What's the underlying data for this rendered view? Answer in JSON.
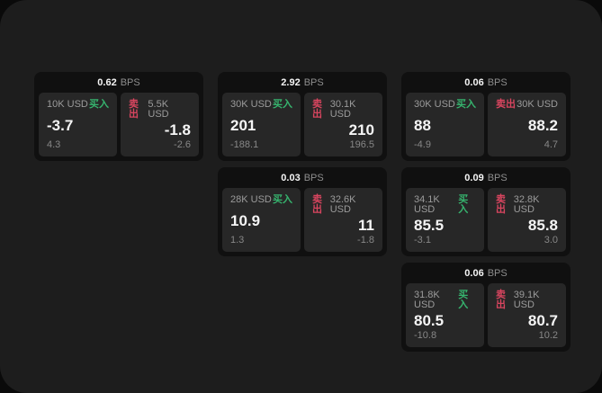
{
  "labels": {
    "buy": "买入",
    "sell": "卖出",
    "bps_unit": "BPS"
  },
  "colors": {
    "buy_accent": "#36b46e",
    "sell_accent": "#d8455f",
    "panel_background": "#1d1d1d",
    "card_background": "#101010",
    "tile_background": "#272727"
  },
  "cards": [
    {
      "bps": "0.62",
      "buy": {
        "amount": "10K USD",
        "price": "-3.7",
        "change": "4.3"
      },
      "sell": {
        "amount": "5.5K USD",
        "price": "-1.8",
        "change": "-2.6"
      }
    },
    {
      "bps": "2.92",
      "buy": {
        "amount": "30K USD",
        "price": "201",
        "change": "-188.1"
      },
      "sell": {
        "amount": "30.1K USD",
        "price": "210",
        "change": "196.5"
      }
    },
    {
      "bps": "0.06",
      "buy": {
        "amount": "30K USD",
        "price": "88",
        "change": "-4.9"
      },
      "sell": {
        "amount": "30K USD",
        "price": "88.2",
        "change": "4.7"
      }
    },
    {
      "bps": "0.03",
      "buy": {
        "amount": "28K USD",
        "price": "10.9",
        "change": "1.3"
      },
      "sell": {
        "amount": "32.6K USD",
        "price": "11",
        "change": "-1.8"
      }
    },
    {
      "bps": "0.09",
      "buy": {
        "amount": "34.1K USD",
        "price": "85.5",
        "change": "-3.1"
      },
      "sell": {
        "amount": "32.8K USD",
        "price": "85.8",
        "change": "3.0"
      }
    },
    {
      "bps": "0.06",
      "buy": {
        "amount": "31.8K USD",
        "price": "80.5",
        "change": "-10.8"
      },
      "sell": {
        "amount": "39.1K USD",
        "price": "80.7",
        "change": "10.2"
      }
    }
  ]
}
